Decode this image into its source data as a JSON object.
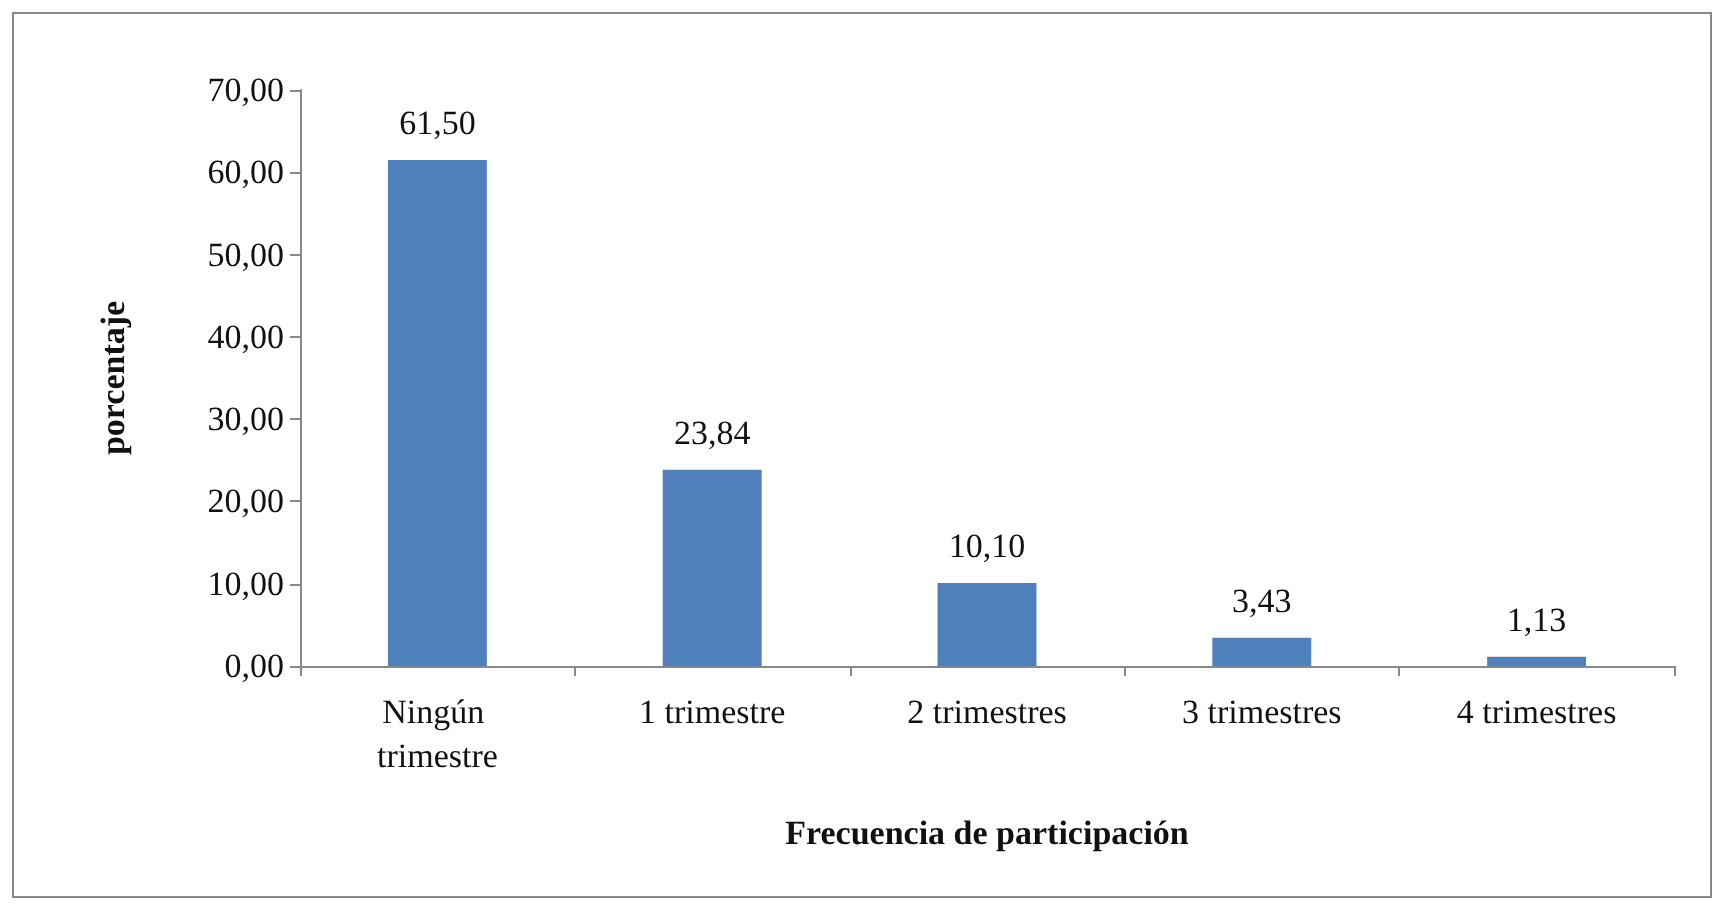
{
  "chart_data": {
    "type": "bar",
    "xlabel": "Frecuencia de participación",
    "ylabel": "porcentaje",
    "categories": [
      "Ningún trimestre",
      "1 trimestre",
      "2 trimestres",
      "3 trimestres",
      "4 trimestres"
    ],
    "values": [
      61.5,
      23.84,
      10.1,
      3.43,
      1.13
    ],
    "color": "#4f81bd",
    "value_labels": [
      "61,50",
      "23,84",
      "10,10",
      "3,43",
      "1,13"
    ],
    "ylim": [
      0,
      70
    ],
    "yticks": [
      {
        "value": 0,
        "label": "0,00"
      },
      {
        "value": 10,
        "label": "10,00"
      },
      {
        "value": 20,
        "label": "20,00"
      },
      {
        "value": 30,
        "label": "30,00"
      },
      {
        "value": 40,
        "label": "40,00"
      },
      {
        "value": 50,
        "label": "50,00"
      },
      {
        "value": 60,
        "label": "60,00"
      },
      {
        "value": 70,
        "label": "70,00"
      }
    ],
    "grid": false
  }
}
